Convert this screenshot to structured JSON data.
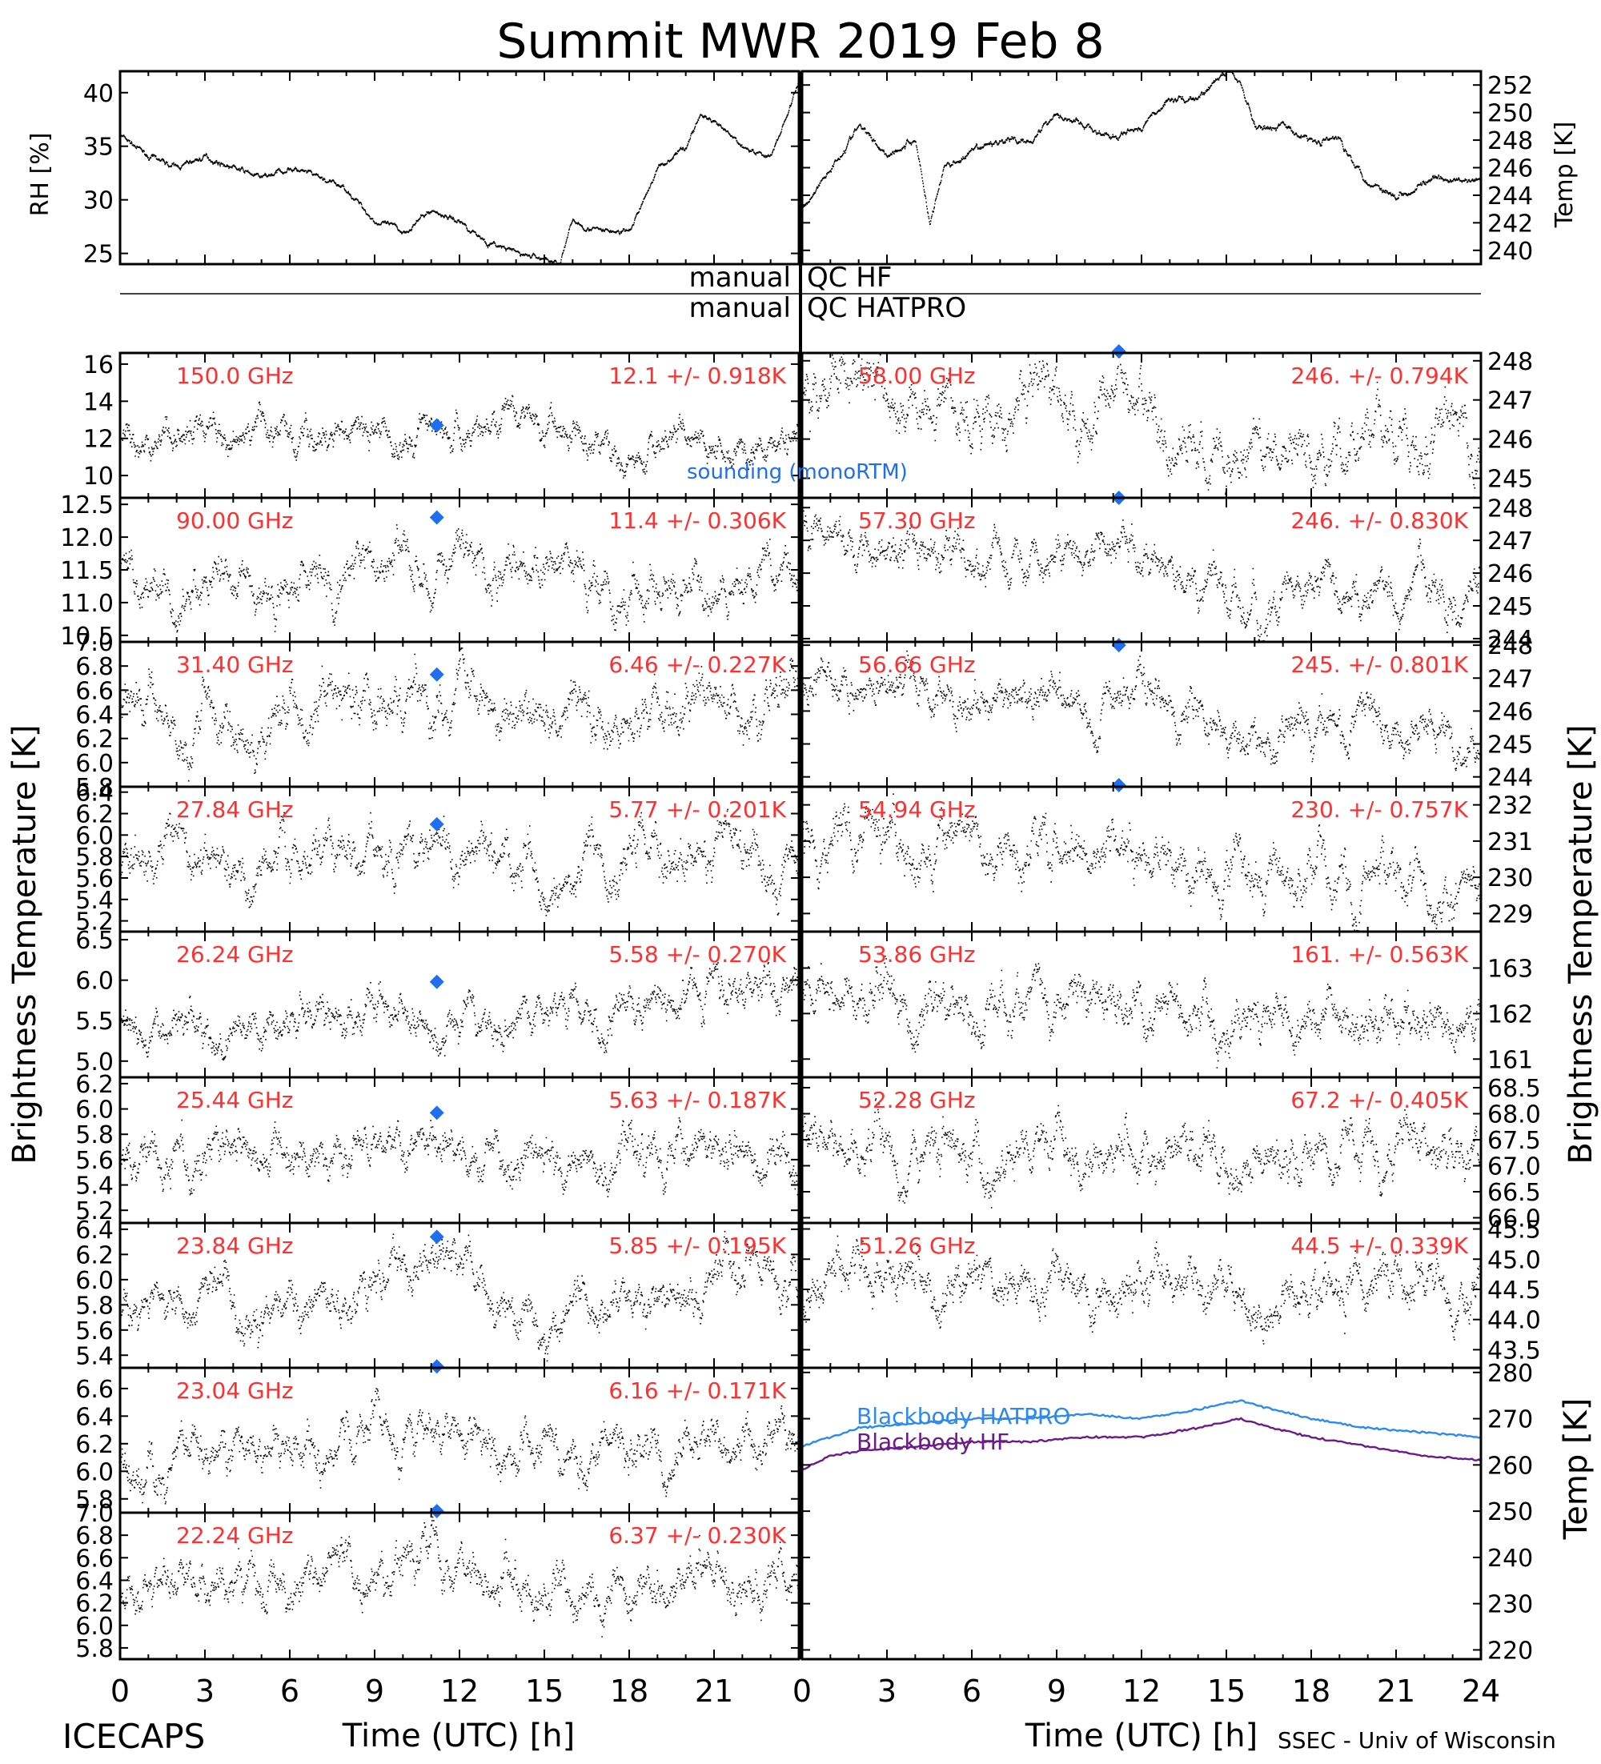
{
  "title": "Summit MWR 2019 Feb  8",
  "bottom_left": "ICECAPS",
  "bottom_right": "SSEC - Univ of Wisconsin",
  "xlabel": "Time (UTC) [h]",
  "xticks": [
    "0",
    "3",
    "6",
    "9",
    "12",
    "15",
    "18",
    "21",
    "24"
  ],
  "qc_labels": {
    "left1": "manual",
    "right1": "QC HF",
    "left2": "manual",
    "right2": "QC HATPRO"
  },
  "big_ylabel_left": "Brightness Temperature [K]",
  "big_ylabel_right": "Brightness Temperature [K]",
  "sounding_label": "sounding (monoRTM)",
  "colors": {
    "data": "#000000",
    "label": "#ff3030",
    "sounding": "#1e6ff0",
    "bb_hatpro": "#2a8af0",
    "bb_hf": "#6a1a8a"
  },
  "chart_data": [
    {
      "id": "rh",
      "type": "scatter",
      "ylabel": "RH [%]",
      "ylim": [
        24,
        42
      ],
      "yticks": [
        "25",
        "30",
        "35",
        "40"
      ],
      "x": [
        0,
        1,
        2,
        3,
        4,
        5,
        6,
        7,
        8,
        9,
        10,
        11,
        12,
        13,
        14,
        15,
        15.5,
        16,
        17,
        18,
        19,
        20,
        20.5,
        21,
        22,
        23,
        24
      ],
      "y": [
        36,
        34,
        33,
        34,
        33,
        32,
        33,
        32,
        31,
        28,
        27,
        29,
        28,
        26,
        25,
        24.5,
        24,
        28,
        27,
        27,
        33,
        35,
        38,
        37,
        35,
        34,
        41
      ]
    },
    {
      "id": "temp",
      "type": "scatter",
      "ylabel": "Temp [K]",
      "ylim": [
        239,
        253
      ],
      "yticks": [
        "240",
        "242",
        "244",
        "246",
        "248",
        "250",
        "252"
      ],
      "x": [
        0,
        1,
        2,
        3,
        4,
        4.5,
        5,
        6,
        7,
        8,
        9,
        10,
        11,
        12,
        13,
        14,
        15,
        15.5,
        16,
        17,
        18,
        19,
        20,
        21,
        22,
        23,
        24
      ],
      "y": [
        243,
        246,
        249,
        247,
        248,
        242,
        246,
        247,
        248,
        248,
        250,
        249,
        248,
        249,
        251,
        251,
        253,
        252,
        249,
        249,
        248,
        248,
        245,
        244,
        245,
        245,
        245
      ]
    },
    {
      "id": "ch150",
      "type": "scatter",
      "freq_label": "150.0 GHz",
      "stat_label": "12.1 +/- 0.918K",
      "ylim": [
        8.8,
        16.6
      ],
      "yticks": [
        "10",
        "12",
        "14",
        "16"
      ],
      "x": [
        0,
        3,
        6,
        9,
        12,
        15,
        18,
        21,
        24
      ],
      "y": [
        12,
        12.4,
        12.1,
        12.4,
        12.8,
        12.4,
        11.9,
        11.8,
        11.5
      ],
      "noise": 1.1,
      "sounding": [
        11.2,
        12.7
      ]
    },
    {
      "id": "ch90",
      "type": "scatter",
      "freq_label": "90.00 GHz",
      "stat_label": "11.4 +/- 0.306K",
      "ylim": [
        10.4,
        12.6
      ],
      "yticks": [
        "10.5",
        "11.0",
        "11.5",
        "12.0",
        "12.5"
      ],
      "x": [
        0,
        3,
        6,
        9,
        12,
        15,
        18,
        21,
        24
      ],
      "y": [
        11.5,
        11.3,
        11.3,
        11.5,
        11.6,
        11.4,
        11.3,
        11.4,
        11.3
      ],
      "noise": 0.42,
      "sounding": [
        11.2,
        12.3
      ]
    },
    {
      "id": "ch3140",
      "type": "scatter",
      "freq_label": "31.40 GHz",
      "stat_label": "6.46 +/- 0.227K",
      "ylim": [
        5.8,
        7.0
      ],
      "yticks": [
        "5.8",
        "6.0",
        "6.2",
        "6.4",
        "6.6",
        "6.8",
        "7.0"
      ],
      "x": [
        0,
        3,
        6,
        9,
        12,
        15,
        18,
        21,
        24
      ],
      "y": [
        6.4,
        6.3,
        6.3,
        6.5,
        6.6,
        6.4,
        6.4,
        6.5,
        6.5
      ],
      "noise": 0.28,
      "sounding": [
        11.2,
        6.73
      ]
    },
    {
      "id": "ch2784",
      "type": "scatter",
      "freq_label": "27.84 GHz",
      "stat_label": "5.77 +/- 0.201K",
      "ylim": [
        5.1,
        6.45
      ],
      "yticks": [
        "5.2",
        "5.4",
        "5.6",
        "5.8",
        "6.0",
        "6.2",
        "6.4"
      ],
      "x": [
        0,
        3,
        6,
        9,
        12,
        15,
        18,
        21,
        24
      ],
      "y": [
        5.7,
        5.8,
        5.7,
        5.9,
        5.9,
        5.6,
        5.7,
        5.8,
        5.8
      ],
      "noise": 0.28,
      "sounding": [
        11.2,
        6.1
      ]
    },
    {
      "id": "ch2624",
      "type": "scatter",
      "freq_label": "26.24 GHz",
      "stat_label": "5.58 +/- 0.270K",
      "ylim": [
        4.8,
        6.6
      ],
      "yticks": [
        "5.0",
        "5.5",
        "6.0",
        "6.5"
      ],
      "x": [
        0,
        3,
        6,
        9,
        12,
        15,
        18,
        21,
        24
      ],
      "y": [
        5.5,
        5.5,
        5.4,
        5.6,
        5.5,
        5.5,
        5.7,
        5.9,
        5.8
      ],
      "noise": 0.32,
      "sounding": [
        11.2,
        5.98
      ]
    },
    {
      "id": "ch2544",
      "type": "scatter",
      "freq_label": "25.44 GHz",
      "stat_label": "5.63 +/- 0.187K",
      "ylim": [
        5.1,
        6.25
      ],
      "yticks": [
        "5.2",
        "5.4",
        "5.6",
        "5.8",
        "6.0",
        "6.2"
      ],
      "x": [
        0,
        3,
        6,
        9,
        12,
        15,
        18,
        21,
        24
      ],
      "y": [
        5.5,
        5.6,
        5.6,
        5.8,
        5.7,
        5.5,
        5.6,
        5.7,
        5.6
      ],
      "noise": 0.22,
      "sounding": [
        11.2,
        5.97
      ]
    },
    {
      "id": "ch2384",
      "type": "scatter",
      "freq_label": "23.84 GHz",
      "stat_label": "5.85 +/- 0.195K",
      "ylim": [
        5.3,
        6.45
      ],
      "yticks": [
        "5.4",
        "5.6",
        "5.8",
        "6.0",
        "6.2",
        "6.4"
      ],
      "x": [
        0,
        3,
        6,
        9,
        12,
        15,
        18,
        21,
        24
      ],
      "y": [
        5.7,
        5.8,
        5.8,
        6.0,
        6.1,
        5.7,
        5.8,
        6.0,
        5.9
      ],
      "noise": 0.22,
      "sounding": [
        11.2,
        6.34
      ]
    },
    {
      "id": "ch2304",
      "type": "scatter",
      "freq_label": "23.04 GHz",
      "stat_label": "6.16 +/- 0.171K",
      "ylim": [
        5.7,
        6.75
      ],
      "yticks": [
        "5.8",
        "6.0",
        "6.2",
        "6.4",
        "6.6"
      ],
      "x": [
        0,
        3,
        6,
        9,
        12,
        15,
        18,
        21,
        24
      ],
      "y": [
        6.0,
        6.1,
        6.2,
        6.3,
        6.3,
        6.1,
        6.2,
        6.2,
        6.2
      ],
      "noise": 0.2,
      "sounding": [
        11.2,
        6.76
      ]
    },
    {
      "id": "ch2224",
      "type": "scatter",
      "freq_label": "22.24 GHz",
      "stat_label": "6.37 +/- 0.230K",
      "ylim": [
        5.7,
        7.0
      ],
      "yticks": [
        "5.8",
        "6.0",
        "6.2",
        "6.4",
        "6.6",
        "6.8",
        "7.0"
      ],
      "x": [
        0,
        3,
        6,
        9,
        12,
        15,
        18,
        21,
        24
      ],
      "y": [
        6.2,
        6.3,
        6.4,
        6.5,
        6.5,
        6.3,
        6.3,
        6.4,
        6.3
      ],
      "noise": 0.26,
      "sounding": [
        11.2,
        7.02
      ]
    },
    {
      "id": "ch5800",
      "type": "scatter",
      "freq_label": "58.00 GHz",
      "stat_label": "246. +/- 0.794K",
      "ylim": [
        244.5,
        248.2
      ],
      "yticks": [
        "245",
        "246",
        "247",
        "248"
      ],
      "x": [
        0,
        3,
        6,
        9,
        12,
        15,
        18,
        21,
        24
      ],
      "y": [
        247.5,
        247,
        246.4,
        247,
        246.8,
        245.4,
        245.6,
        246.2,
        245.7
      ],
      "noise": 0.9,
      "sounding": [
        11.2,
        248.4
      ]
    },
    {
      "id": "ch5730",
      "type": "scatter",
      "freq_label": "57.30 GHz",
      "stat_label": "246. +/- 0.830K",
      "ylim": [
        243.9,
        248.3
      ],
      "yticks": [
        "244",
        "245",
        "246",
        "247",
        "248"
      ],
      "x": [
        0,
        3,
        6,
        9,
        12,
        15,
        18,
        21,
        24
      ],
      "y": [
        247.2,
        247,
        246.2,
        246.5,
        246.6,
        245,
        245.2,
        245.7,
        245.3
      ],
      "noise": 0.8,
      "sounding": [
        11.2,
        248.3
      ]
    },
    {
      "id": "ch5666",
      "type": "scatter",
      "freq_label": "56.66 GHz",
      "stat_label": "245. +/- 0.801K",
      "ylim": [
        243.7,
        248.1
      ],
      "yticks": [
        "244",
        "245",
        "246",
        "247",
        "248"
      ],
      "x": [
        0,
        3,
        6,
        9,
        12,
        15,
        18,
        21,
        24
      ],
      "y": [
        247,
        246.7,
        246.2,
        246.5,
        246.5,
        245,
        245.3,
        245.5,
        245.2
      ],
      "noise": 0.8,
      "sounding": [
        11.2,
        248.0
      ]
    },
    {
      "id": "ch5494",
      "type": "scatter",
      "freq_label": "54.94 GHz",
      "stat_label": "230. +/- 0.757K",
      "ylim": [
        228.5,
        232.5
      ],
      "yticks": [
        "229",
        "230",
        "231",
        "232"
      ],
      "x": [
        0,
        3,
        6,
        9,
        12,
        15,
        18,
        21,
        24
      ],
      "y": [
        231.2,
        230.9,
        230.9,
        230.8,
        230.5,
        229.7,
        229.8,
        229.7,
        229.6
      ],
      "noise": 0.9,
      "sounding": [
        11.2,
        232.6
      ]
    },
    {
      "id": "ch5386",
      "type": "scatter",
      "freq_label": "53.86 GHz",
      "stat_label": "161. +/- 0.563K",
      "ylim": [
        160.6,
        163.8
      ],
      "yticks": [
        "161",
        "162",
        "163"
      ],
      "x": [
        0,
        3,
        6,
        9,
        12,
        15,
        18,
        21,
        24
      ],
      "y": [
        162.5,
        162.3,
        162.1,
        162.2,
        162.1,
        161.6,
        161.7,
        161.8,
        161.6
      ],
      "noise": 0.65
    },
    {
      "id": "ch5228",
      "type": "scatter",
      "freq_label": "52.28 GHz",
      "stat_label": "67.2 +/- 0.405K",
      "ylim": [
        65.9,
        68.7
      ],
      "yticks": [
        "66.0",
        "66.5",
        "67.0",
        "67.5",
        "68.0",
        "68.5"
      ],
      "x": [
        0,
        3,
        6,
        9,
        12,
        15,
        18,
        21,
        24
      ],
      "y": [
        67.3,
        67.2,
        67.2,
        67.3,
        67.2,
        67.1,
        67.2,
        67.2,
        67.3
      ],
      "noise": 0.6
    },
    {
      "id": "ch5126",
      "type": "scatter",
      "freq_label": "51.26 GHz",
      "stat_label": "44.5 +/- 0.339K",
      "ylim": [
        43.2,
        45.6
      ],
      "yticks": [
        "43.5",
        "44.0",
        "44.5",
        "45.0",
        "45.5"
      ],
      "x": [
        0,
        3,
        6,
        9,
        12,
        15,
        18,
        21,
        24
      ],
      "y": [
        44.5,
        44.5,
        44.5,
        44.5,
        44.6,
        44.5,
        44.5,
        44.6,
        44.5
      ],
      "noise": 0.5
    },
    {
      "id": "blackbody",
      "type": "line",
      "ylabel": "Temp [K]",
      "ylim": [
        218,
        281
      ],
      "yticks": [
        "220",
        "230",
        "240",
        "250",
        "260",
        "270",
        "280"
      ],
      "x": [
        0,
        1,
        2,
        4,
        6,
        8,
        10,
        12,
        14,
        15.5,
        16,
        18,
        20,
        22,
        24
      ],
      "series": [
        {
          "name": "Blackbody HATPRO",
          "values": [
            264,
            266,
            268,
            269,
            270,
            270,
            271,
            270,
            272,
            274,
            273,
            270,
            268,
            267,
            266
          ]
        },
        {
          "name": "Blackbody HF",
          "values": [
            259,
            262,
            263,
            264,
            265,
            265,
            266,
            266,
            268,
            270,
            269,
            266,
            264,
            262,
            261
          ]
        }
      ]
    }
  ]
}
